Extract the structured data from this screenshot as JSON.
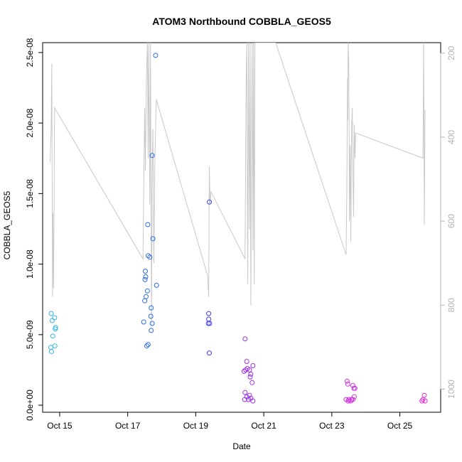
{
  "chart_data": {
    "type": "scatter",
    "title": "ATOM3 Northbound COBBLA_GEOS5",
    "xlabel": "Date",
    "ylabel": "COBBLA_GEOS5",
    "x_ticks": [
      "Oct 15",
      "Oct 17",
      "Oct 19",
      "Oct 21",
      "Oct 23",
      "Oct 25"
    ],
    "x_tick_days": [
      15,
      17,
      19,
      21,
      23,
      25
    ],
    "xlim": [
      14.5,
      26.2
    ],
    "y_ticks": [
      "0.0e+00",
      "5.0e-09",
      "1.0e-08",
      "1.5e-08",
      "2.0e-08",
      "2.5e-08"
    ],
    "y_tick_values": [
      0,
      5e-09,
      1e-08,
      1.5e-08,
      2e-08,
      2.5e-08
    ],
    "ylim": [
      -5e-10,
      2.57e-08
    ],
    "y2_ticks": [
      "200",
      "400",
      "600",
      "800",
      "1000"
    ],
    "y2_tick_values": [
      200,
      400,
      600,
      800,
      1000
    ],
    "y2lim": [
      175,
      1055
    ],
    "y2_reversed": true,
    "grid": false,
    "legend": "none",
    "colors": {
      "line": "#c8c8c8",
      "axis": "#000000",
      "axis_right": "#b3b3b3"
    },
    "points": [
      {
        "x": 14.75,
        "y": 6.5e-09,
        "c": "#33b5e5"
      },
      {
        "x": 14.78,
        "y": 6e-09,
        "c": "#33b5e5"
      },
      {
        "x": 14.85,
        "y": 6.2e-09,
        "c": "#33b5e5"
      },
      {
        "x": 14.88,
        "y": 5.5e-09,
        "c": "#33b5e5"
      },
      {
        "x": 14.87,
        "y": 5.4e-09,
        "c": "#33b5e5"
      },
      {
        "x": 14.8,
        "y": 4.9e-09,
        "c": "#33b5e5"
      },
      {
        "x": 14.74,
        "y": 4.1e-09,
        "c": "#33b5e5"
      },
      {
        "x": 14.86,
        "y": 4.2e-09,
        "c": "#33b5e5"
      },
      {
        "x": 14.76,
        "y": 3.8e-09,
        "c": "#33b5e5"
      },
      {
        "x": 17.82,
        "y": 2.48e-08,
        "c": "#2b6ce8"
      },
      {
        "x": 17.72,
        "y": 1.77e-08,
        "c": "#2b6ce8"
      },
      {
        "x": 17.59,
        "y": 1.28e-08,
        "c": "#2b6ce8"
      },
      {
        "x": 17.74,
        "y": 1.18e-08,
        "c": "#2b6ce8"
      },
      {
        "x": 17.6,
        "y": 1.06e-08,
        "c": "#2b6ce8"
      },
      {
        "x": 17.65,
        "y": 1.05e-08,
        "c": "#2b6ce8"
      },
      {
        "x": 17.52,
        "y": 9.5e-09,
        "c": "#2b6ce8"
      },
      {
        "x": 17.53,
        "y": 9.1e-09,
        "c": "#2b6ce8"
      },
      {
        "x": 17.51,
        "y": 8.9e-09,
        "c": "#2b6ce8"
      },
      {
        "x": 17.85,
        "y": 8.5e-09,
        "c": "#2b6ce8"
      },
      {
        "x": 17.58,
        "y": 8.1e-09,
        "c": "#2b6ce8"
      },
      {
        "x": 17.54,
        "y": 7.7e-09,
        "c": "#2b6ce8"
      },
      {
        "x": 17.5,
        "y": 7.4e-09,
        "c": "#2b6ce8"
      },
      {
        "x": 17.69,
        "y": 6.9e-09,
        "c": "#2b6ce8"
      },
      {
        "x": 17.68,
        "y": 6.3e-09,
        "c": "#2b6ce8"
      },
      {
        "x": 17.47,
        "y": 5.9e-09,
        "c": "#2b6ce8"
      },
      {
        "x": 17.72,
        "y": 5.8e-09,
        "c": "#2b6ce8"
      },
      {
        "x": 17.69,
        "y": 5.3e-09,
        "c": "#2b6ce8"
      },
      {
        "x": 17.6,
        "y": 4.3e-09,
        "c": "#2b6ce8"
      },
      {
        "x": 17.56,
        "y": 4.2e-09,
        "c": "#2b6ce8"
      },
      {
        "x": 19.4,
        "y": 1.44e-08,
        "c": "#3d3df0"
      },
      {
        "x": 19.38,
        "y": 6.5e-09,
        "c": "#3d3df0"
      },
      {
        "x": 19.38,
        "y": 6.1e-09,
        "c": "#3d3df0"
      },
      {
        "x": 19.37,
        "y": 5.8e-09,
        "c": "#3d3df0"
      },
      {
        "x": 19.41,
        "y": 5.8e-09,
        "c": "#3d3df0"
      },
      {
        "x": 19.4,
        "y": 3.7e-09,
        "c": "#3d3df0"
      },
      {
        "x": 20.45,
        "y": 4.7e-09,
        "c": "#9b30e8"
      },
      {
        "x": 20.5,
        "y": 3.1e-09,
        "c": "#9b30e8"
      },
      {
        "x": 20.68,
        "y": 2.8e-09,
        "c": "#9b30e8"
      },
      {
        "x": 20.47,
        "y": 2.5e-09,
        "c": "#9b30e8"
      },
      {
        "x": 20.52,
        "y": 2.6e-09,
        "c": "#9b30e8"
      },
      {
        "x": 20.58,
        "y": 2.5e-09,
        "c": "#9b30e8"
      },
      {
        "x": 20.42,
        "y": 2.4e-09,
        "c": "#9b30e8"
      },
      {
        "x": 20.62,
        "y": 2.2e-09,
        "c": "#9b30e8"
      },
      {
        "x": 20.6,
        "y": 2e-09,
        "c": "#9b30e8"
      },
      {
        "x": 20.66,
        "y": 1.6e-09,
        "c": "#9b30e8"
      },
      {
        "x": 20.45,
        "y": 9e-10,
        "c": "#9b30e8"
      },
      {
        "x": 20.5,
        "y": 6e-10,
        "c": "#9b30e8"
      },
      {
        "x": 20.58,
        "y": 7e-10,
        "c": "#9b30e8"
      },
      {
        "x": 20.44,
        "y": 4e-10,
        "c": "#9b30e8"
      },
      {
        "x": 20.62,
        "y": 5e-10,
        "c": "#9b30e8"
      },
      {
        "x": 20.68,
        "y": 3e-10,
        "c": "#9b30e8"
      },
      {
        "x": 20.55,
        "y": 4e-10,
        "c": "#9b30e8"
      },
      {
        "x": 23.45,
        "y": 1.7e-09,
        "c": "#d030e0"
      },
      {
        "x": 23.47,
        "y": 1.5e-09,
        "c": "#d030e0"
      },
      {
        "x": 23.62,
        "y": 1.4e-09,
        "c": "#d030e0"
      },
      {
        "x": 23.68,
        "y": 1.2e-09,
        "c": "#d030e0"
      },
      {
        "x": 23.65,
        "y": 1.2e-09,
        "c": "#d030e0"
      },
      {
        "x": 23.42,
        "y": 4e-10,
        "c": "#d030e0"
      },
      {
        "x": 23.5,
        "y": 4e-10,
        "c": "#d030e0"
      },
      {
        "x": 23.55,
        "y": 3e-10,
        "c": "#d030e0"
      },
      {
        "x": 23.58,
        "y": 4e-10,
        "c": "#d030e0"
      },
      {
        "x": 23.62,
        "y": 4e-10,
        "c": "#d030e0"
      },
      {
        "x": 23.66,
        "y": 6e-10,
        "c": "#d030e0"
      },
      {
        "x": 23.48,
        "y": 3e-10,
        "c": "#d030e0"
      },
      {
        "x": 25.72,
        "y": 7e-10,
        "c": "#e030d8"
      },
      {
        "x": 25.68,
        "y": 4e-10,
        "c": "#e030d8"
      },
      {
        "x": 25.74,
        "y": 3e-10,
        "c": "#e030d8"
      },
      {
        "x": 25.65,
        "y": 3e-10,
        "c": "#e030d8"
      }
    ],
    "line_y2": [
      [
        14.72,
        460
      ],
      [
        14.75,
        380
      ],
      [
        14.77,
        225
      ],
      [
        14.79,
        780
      ],
      [
        14.8,
        580
      ],
      [
        14.82,
        760
      ],
      [
        14.84,
        490
      ],
      [
        14.85,
        330
      ],
      [
        17.45,
        690
      ],
      [
        17.47,
        520
      ],
      [
        17.5,
        330
      ],
      [
        17.52,
        480
      ],
      [
        17.55,
        260
      ],
      [
        17.58,
        175
      ],
      [
        17.6,
        450
      ],
      [
        17.62,
        175
      ],
      [
        17.65,
        560
      ],
      [
        17.67,
        175
      ],
      [
        17.7,
        850
      ],
      [
        17.72,
        490
      ],
      [
        17.74,
        380
      ],
      [
        17.77,
        700
      ],
      [
        17.8,
        450
      ],
      [
        17.84,
        310
      ],
      [
        19.35,
        730
      ],
      [
        19.38,
        780
      ],
      [
        19.4,
        470
      ],
      [
        19.42,
        560
      ],
      [
        19.45,
        530
      ],
      [
        20.45,
        690
      ],
      [
        20.48,
        280
      ],
      [
        20.5,
        175
      ],
      [
        20.53,
        750
      ],
      [
        20.55,
        175
      ],
      [
        20.58,
        620
      ],
      [
        20.6,
        175
      ],
      [
        20.62,
        800
      ],
      [
        20.64,
        400
      ],
      [
        20.66,
        175
      ],
      [
        20.68,
        670
      ],
      [
        20.7,
        175
      ],
      [
        20.72,
        750
      ],
      [
        20.74,
        175
      ],
      [
        21.35,
        175
      ],
      [
        23.42,
        680
      ],
      [
        23.44,
        540
      ],
      [
        23.46,
        260
      ],
      [
        23.47,
        360
      ],
      [
        23.48,
        175
      ],
      [
        23.5,
        230
      ],
      [
        23.52,
        600
      ],
      [
        23.54,
        420
      ],
      [
        23.56,
        650
      ],
      [
        23.58,
        380
      ],
      [
        23.6,
        330
      ],
      [
        23.62,
        480
      ],
      [
        23.64,
        590
      ],
      [
        23.66,
        370
      ],
      [
        23.68,
        450
      ],
      [
        23.7,
        390
      ],
      [
        25.68,
        450
      ],
      [
        25.7,
        175
      ],
      [
        25.72,
        610
      ],
      [
        25.74,
        335
      ]
    ]
  }
}
